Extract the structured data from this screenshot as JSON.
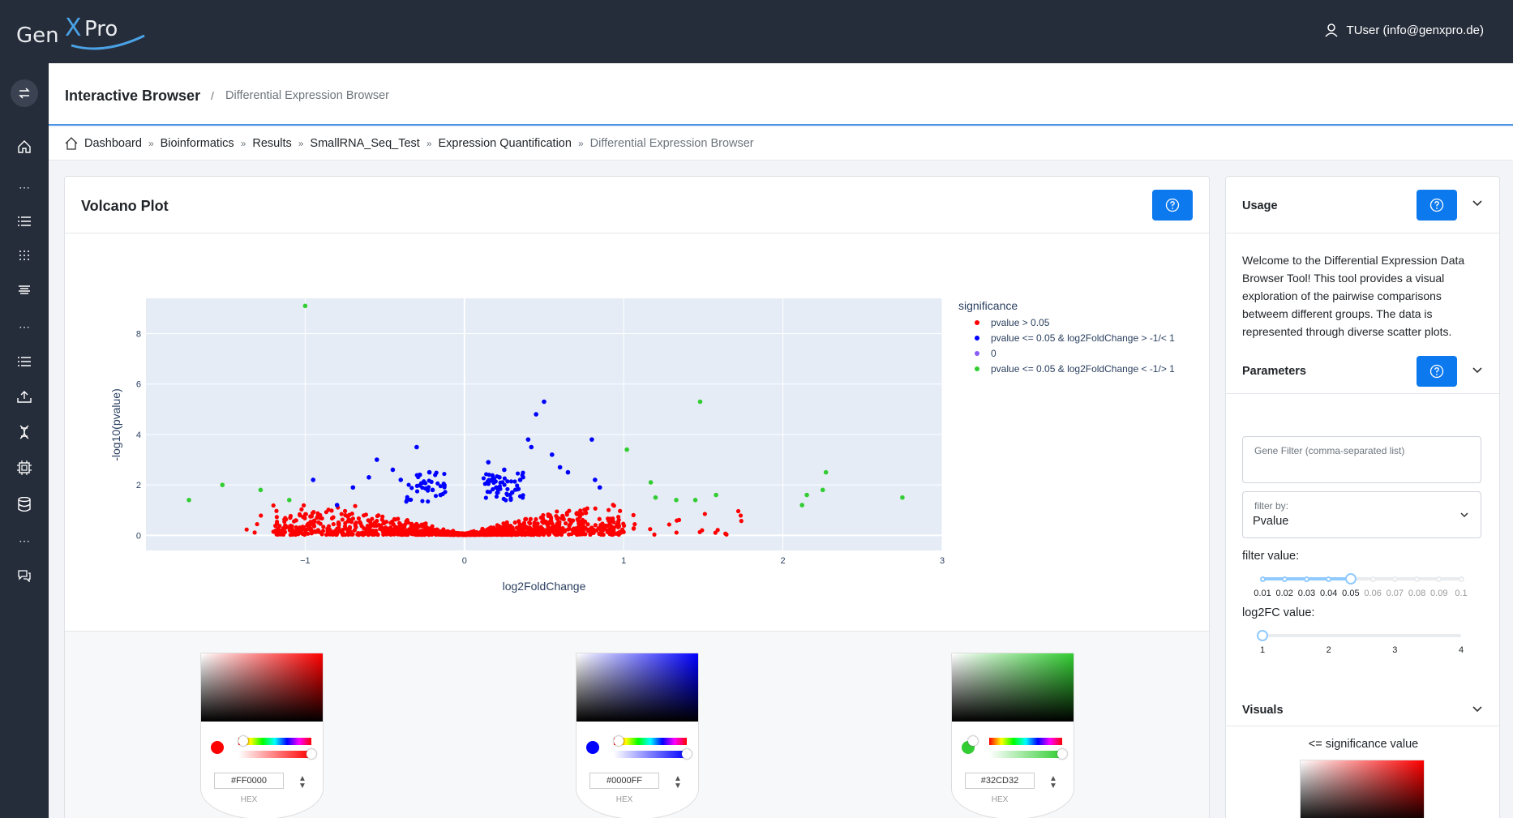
{
  "header": {
    "logo_text": "GenXPro",
    "user_label": "TUser (info@genxpro.de)"
  },
  "sidebar": {
    "icons": [
      "swap-icon",
      "home-icon",
      "more-icon",
      "list-icon",
      "grid-icon",
      "align-icon",
      "more-icon",
      "list-icon",
      "upload-icon",
      "dna-icon",
      "chip-icon",
      "database-icon",
      "more-icon",
      "chat-icon"
    ]
  },
  "page": {
    "title": "Interactive Browser",
    "separator": "/",
    "subtitle": "Differential Expression Browser"
  },
  "breadcrumb": [
    "Dashboard",
    "Bioinformatics",
    "Results",
    "SmallRNA_Seq_Test",
    "Expression Quantification",
    "Differential Expression Browser"
  ],
  "breadcrumb_sep": "»",
  "main": {
    "title": "Volcano Plot"
  },
  "pickers": [
    {
      "hex": "#FF0000",
      "label": "HEX",
      "color": "#FF0000"
    },
    {
      "hex": "#0000FF",
      "label": "HEX",
      "color": "#0000FF"
    },
    {
      "hex": "#32CD32",
      "label": "HEX",
      "color": "#32CD32"
    }
  ],
  "side": {
    "usage_title": "Usage",
    "usage_text": "Welcome to the Differential Expression Data Browser Tool! This tool provides a visual exploration of the pairwise comparisons betweem different groups. The data is represented through diverse scatter plots.",
    "parameters_title": "Parameters",
    "gene_filter_placeholder": "Gene Filter (comma-separated list)",
    "filter_by_label": "filter by:",
    "filter_by_value": "Pvalue",
    "filter_value_label": "filter value:",
    "filter_value_marks": [
      "0.01",
      "0.02",
      "0.03",
      "0.04",
      "0.05",
      "0.06",
      "0.07",
      "0.08",
      "0.09",
      "0.1"
    ],
    "filter_value_selected": 0.05,
    "log2fc_label": "log2FC value:",
    "log2fc_marks": [
      "1",
      "2",
      "3",
      "4"
    ],
    "log2fc_selected": 1,
    "visuals_title": "Visuals",
    "sig_value_label": "<= significance value"
  },
  "colors": {
    "accent": "#0d79ee",
    "dark": "#262d3a"
  },
  "chart_data": {
    "type": "scatter",
    "xlabel": "log2FoldChange",
    "ylabel": "-log10(pvalue)",
    "xticks": [
      "−1",
      "0",
      "1",
      "2",
      "3"
    ],
    "yticks": [
      "0",
      "2",
      "4",
      "6",
      "8"
    ],
    "xlim": [
      -2.0,
      3.0
    ],
    "ylim": [
      -0.6,
      9.4
    ],
    "legend_title": "significance",
    "legend_position": "right",
    "series": [
      {
        "name": "pvalue > 0.05",
        "color": "#ff0000",
        "points": "dense band from x=-1.4 to 1.7, y=0 to 1.3"
      },
      {
        "name": "pvalue <= 0.05 & log2FoldChange > -1/< 1",
        "color": "#0000ff",
        "x": [
          -0.95,
          -0.8,
          -0.7,
          -0.6,
          -0.55,
          -0.45,
          -0.4,
          -0.3,
          -0.28,
          -0.22,
          -0.2,
          -0.15,
          0.15,
          0.2,
          0.22,
          0.25,
          0.3,
          0.35,
          0.4,
          0.42,
          0.45,
          0.5,
          0.55,
          0.6,
          0.65,
          0.8,
          0.82,
          0.85
        ],
        "y": [
          2.2,
          1.2,
          1.9,
          2.3,
          3.0,
          2.6,
          2.2,
          3.5,
          2.4,
          2.5,
          1.8,
          1.6,
          2.9,
          1.9,
          2.3,
          2.6,
          1.7,
          2.2,
          3.8,
          3.5,
          4.8,
          5.3,
          3.2,
          2.7,
          2.5,
          3.8,
          2.2,
          1.9
        ]
      },
      {
        "name": "0",
        "color": "#8a5cf6",
        "x": [],
        "y": []
      },
      {
        "name": "pvalue <= 0.05 & log2FoldChange < -1/> 1",
        "color": "#32cd32",
        "x": [
          -1.73,
          -1.52,
          -1.28,
          -1.1,
          -1.0,
          1.02,
          1.17,
          1.2,
          1.33,
          1.45,
          1.48,
          1.58,
          2.12,
          2.15,
          2.25,
          2.27,
          2.75
        ],
        "y": [
          1.4,
          2.0,
          1.8,
          1.4,
          9.1,
          3.4,
          2.1,
          1.5,
          1.4,
          1.4,
          5.3,
          1.6,
          1.2,
          1.6,
          1.8,
          2.5,
          1.5
        ]
      }
    ]
  }
}
